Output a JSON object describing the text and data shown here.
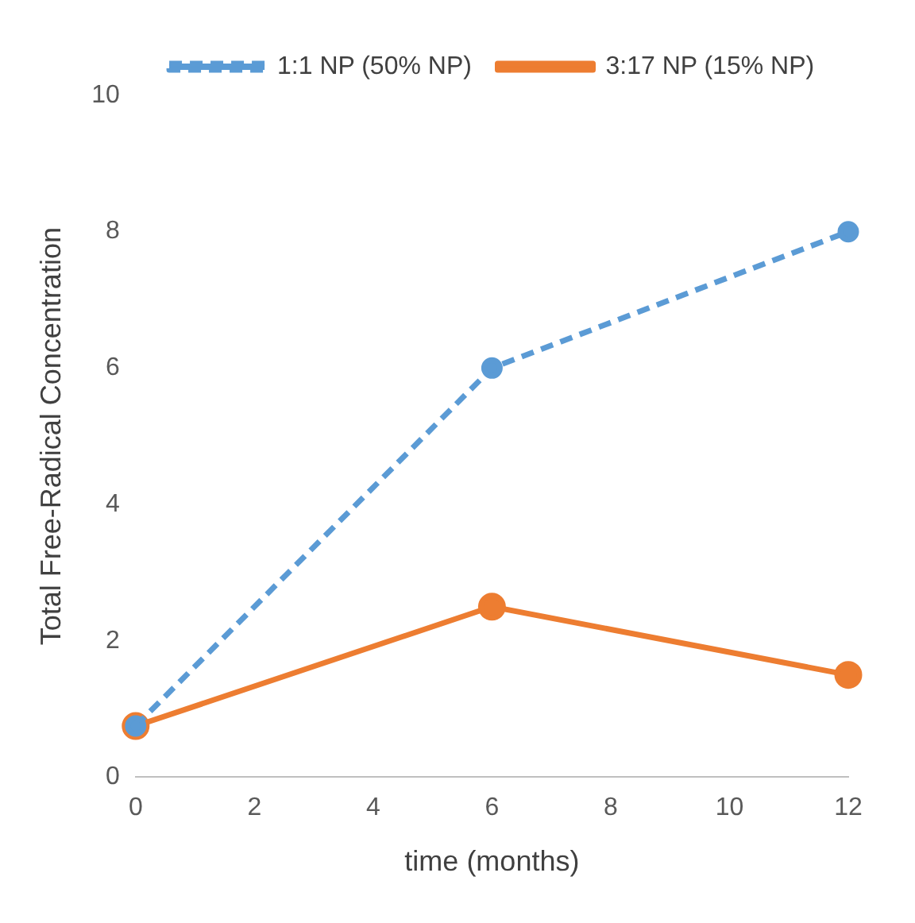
{
  "chart_data": {
    "type": "line",
    "xlabel": "time (months)",
    "ylabel": "Total Free-Radical Concentration",
    "x": [
      0,
      6,
      12
    ],
    "series": [
      {
        "name": "1:1 NP (50% NP)",
        "color": "#5b9bd5",
        "values": [
          0.75,
          6,
          8
        ],
        "line_style": "dashed"
      },
      {
        "name": "3:17 NP (15% NP)",
        "color": "#ed7d31",
        "values": [
          0.75,
          2.5,
          1.5
        ],
        "line_style": "solid"
      }
    ],
    "xlim": [
      0,
      12
    ],
    "xticks": [
      0,
      2,
      4,
      6,
      8,
      10,
      12
    ],
    "ylim": [
      0,
      10
    ],
    "yticks": [
      0,
      2,
      4,
      6,
      8,
      10
    ],
    "grid": false,
    "legend": "top",
    "marker": "circle"
  }
}
